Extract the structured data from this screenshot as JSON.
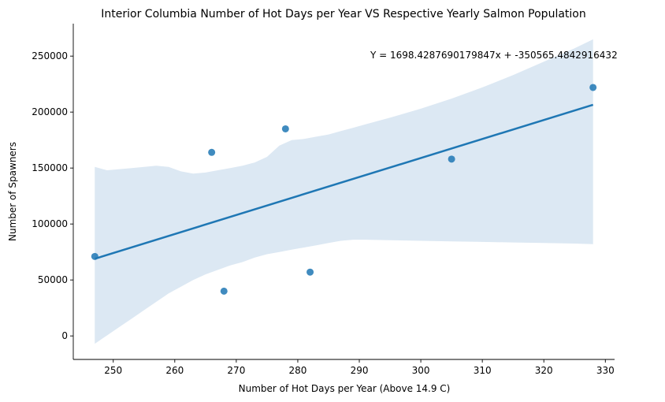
{
  "chart_data": {
    "type": "scatter",
    "title": "Interior Columbia Number of Hot Days per Year VS Respective Yearly Salmon Population",
    "xlabel": "Number of Hot Days per Year (Above 14.9 C)",
    "ylabel": "Number of Spawners",
    "xlim": [
      243.5,
      331.5
    ],
    "ylim": [
      -21000,
      279000
    ],
    "xticks": [
      250,
      260,
      270,
      280,
      290,
      300,
      310,
      320,
      330
    ],
    "yticks": [
      0,
      50000,
      100000,
      150000,
      200000,
      250000
    ],
    "grid": false,
    "points": [
      {
        "x": 247,
        "y": 71000
      },
      {
        "x": 266,
        "y": 164000
      },
      {
        "x": 268,
        "y": 40000
      },
      {
        "x": 278,
        "y": 185000
      },
      {
        "x": 282,
        "y": 57000
      },
      {
        "x": 305,
        "y": 158000
      },
      {
        "x": 328,
        "y": 222000
      }
    ],
    "regression": {
      "slope": 1698.4287690179847,
      "intercept": -350565.4842916432,
      "x_range": [
        247,
        328
      ]
    },
    "confidence_band": {
      "x": [
        247,
        249,
        251,
        253,
        255,
        257,
        259,
        261,
        263,
        265,
        267,
        269,
        271,
        273,
        275,
        277,
        279,
        281,
        283,
        285,
        287,
        289,
        291,
        295,
        300,
        305,
        310,
        315,
        320,
        325,
        328
      ],
      "upper": [
        151000,
        148000,
        149000,
        150000,
        151000,
        152000,
        151000,
        147000,
        145000,
        146000,
        148000,
        150000,
        152000,
        155000,
        160000,
        170000,
        175000,
        176000,
        178000,
        180000,
        183000,
        186000,
        189000,
        195000,
        203000,
        212000,
        222000,
        233000,
        245000,
        257000,
        265000
      ],
      "lower": [
        -7000,
        500,
        8000,
        15500,
        23000,
        30500,
        38000,
        44000,
        50000,
        55000,
        59000,
        63000,
        66000,
        70000,
        73000,
        75000,
        77000,
        79000,
        81000,
        83000,
        85000,
        86000,
        86000,
        85500,
        85000,
        84500,
        84000,
        83500,
        83000,
        82500,
        82000
      ]
    },
    "annotation": "Y = 1698.4287690179847x + -350565.4842916432",
    "colors": {
      "points": "#1f77b4",
      "line": "#1f77b4",
      "band": "#dce8f3"
    }
  }
}
